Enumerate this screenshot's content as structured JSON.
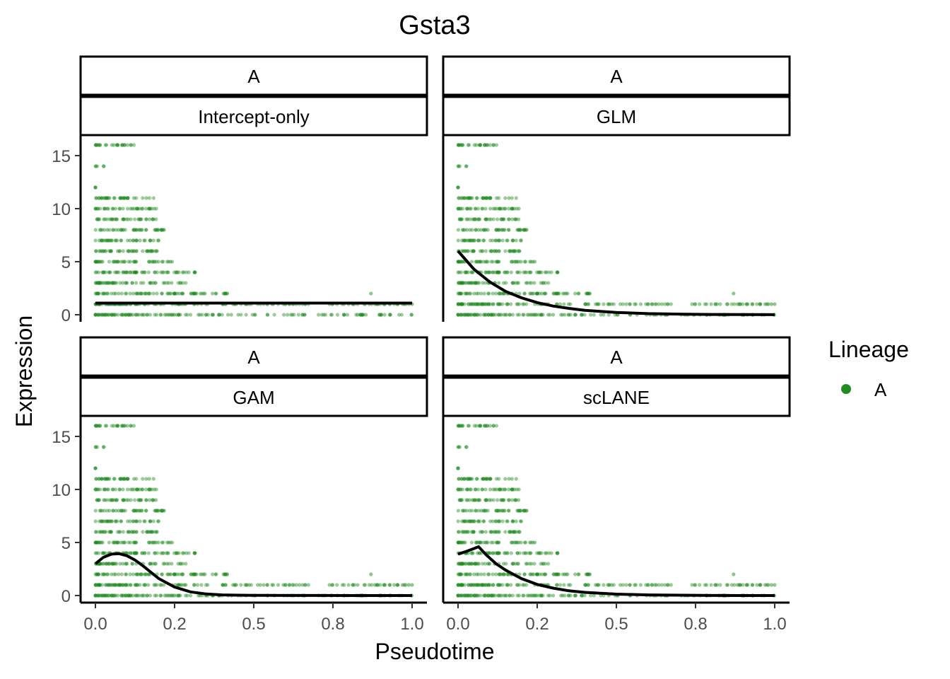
{
  "chart_data": {
    "type": "scatter",
    "title": "Gsta3",
    "xlabel": "Pseudotime",
    "ylabel": "Expression",
    "xlim": [
      0,
      1
    ],
    "ylim": [
      0,
      16
    ],
    "x_ticks": [
      "0.0",
      "0.2",
      "0.5",
      "0.8",
      "1.0"
    ],
    "x_tick_values": [
      0,
      0.25,
      0.5,
      0.75,
      1.0
    ],
    "y_ticks": [
      "0",
      "5",
      "10",
      "15"
    ],
    "y_tick_values": [
      0,
      5,
      10,
      15
    ],
    "point_color": "#228B22",
    "fit_color": "#000000",
    "legend": {
      "title": "Lineage",
      "entries": [
        {
          "label": "A",
          "color": "#228B22"
        }
      ],
      "position": "right"
    },
    "grid": false,
    "panels": [
      {
        "strip_top": "A",
        "strip_bottom": "Intercept-only",
        "model": "intercept",
        "fit": {
          "x": [
            0,
            1.0
          ],
          "y": [
            1.1,
            1.1
          ]
        }
      },
      {
        "strip_top": "A",
        "strip_bottom": "GLM",
        "model": "glm",
        "fit": {
          "x": [
            0,
            0.05,
            0.1,
            0.15,
            0.2,
            0.25,
            0.3,
            0.35,
            0.4,
            0.5,
            0.6,
            0.7,
            0.8,
            0.9,
            1.0
          ],
          "y": [
            6.0,
            4.3,
            3.1,
            2.2,
            1.6,
            1.15,
            0.82,
            0.6,
            0.42,
            0.22,
            0.11,
            0.06,
            0.03,
            0.02,
            0.01
          ]
        }
      },
      {
        "strip_top": "A",
        "strip_bottom": "GAM",
        "model": "gam",
        "fit": {
          "x": [
            0,
            0.025,
            0.05,
            0.075,
            0.1,
            0.125,
            0.15,
            0.175,
            0.2,
            0.25,
            0.3,
            0.35,
            0.4,
            0.45,
            0.5,
            0.6,
            0.7,
            0.8,
            0.9,
            1.0
          ],
          "y": [
            3.0,
            3.6,
            3.9,
            3.95,
            3.75,
            3.35,
            2.8,
            2.2,
            1.6,
            0.8,
            0.35,
            0.15,
            0.06,
            0.03,
            0.02,
            0.01,
            0.01,
            0.0,
            0.0,
            0.0
          ]
        }
      },
      {
        "strip_top": "A",
        "strip_bottom": "scLANE",
        "model": "sclane",
        "fit": {
          "x": [
            0,
            0.03,
            0.065,
            0.09,
            0.12,
            0.15,
            0.2,
            0.25,
            0.3,
            0.35,
            0.4,
            0.5,
            0.6,
            0.7,
            0.8,
            0.9,
            1.0
          ],
          "y": [
            3.9,
            4.2,
            4.6,
            3.8,
            3.0,
            2.4,
            1.6,
            1.05,
            0.7,
            0.45,
            0.3,
            0.13,
            0.06,
            0.03,
            0.01,
            0.0,
            0.0
          ]
        }
      }
    ],
    "scatter_note_bands": [
      {
        "y": 0,
        "x_max": 1.0
      },
      {
        "y": 1,
        "x_max": 1.0
      },
      {
        "y": 2,
        "x_max": 0.42
      },
      {
        "y": 3,
        "x_max": 0.3
      },
      {
        "y": 4,
        "x_max": 0.33
      },
      {
        "y": 5,
        "x_max": 0.25
      },
      {
        "y": 6,
        "x_max": 0.22
      },
      {
        "y": 7,
        "x_max": 0.2
      },
      {
        "y": 8,
        "x_max": 0.22
      },
      {
        "y": 9,
        "x_max": 0.2
      },
      {
        "y": 10,
        "x_max": 0.2
      },
      {
        "y": 11,
        "x_max": 0.2
      },
      {
        "y": 12,
        "x_max": 0.0
      },
      {
        "y": 14,
        "x_max": 0.03
      },
      {
        "y": 16,
        "x_max": 0.14
      }
    ]
  }
}
